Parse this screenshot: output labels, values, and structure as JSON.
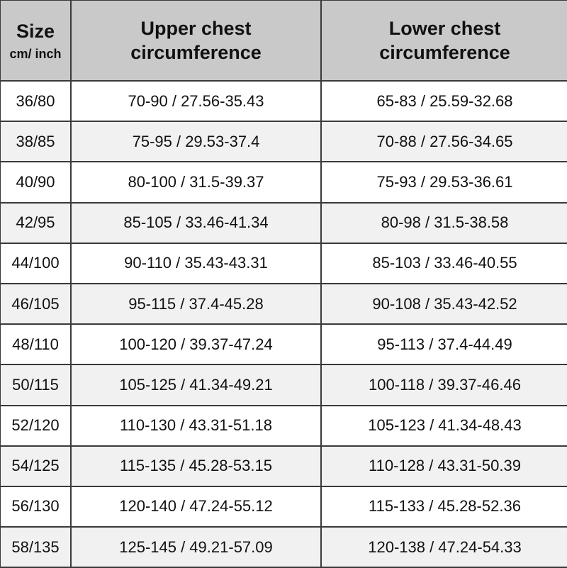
{
  "header": {
    "size": "Size",
    "size_unit": "cm/ inch",
    "upper": "Upper chest circumference",
    "lower": "Lower chest circumference"
  },
  "rows": [
    {
      "size": "36/80",
      "upper": "70-90 / 27.56-35.43",
      "lower": "65-83 / 25.59-32.68"
    },
    {
      "size": "38/85",
      "upper": "75-95 / 29.53-37.4",
      "lower": "70-88 / 27.56-34.65"
    },
    {
      "size": "40/90",
      "upper": "80-100 / 31.5-39.37",
      "lower": "75-93 / 29.53-36.61"
    },
    {
      "size": "42/95",
      "upper": "85-105 / 33.46-41.34",
      "lower": "80-98 / 31.5-38.58"
    },
    {
      "size": "44/100",
      "upper": "90-110 / 35.43-43.31",
      "lower": "85-103 / 33.46-40.55"
    },
    {
      "size": "46/105",
      "upper": "95-115 / 37.4-45.28",
      "lower": "90-108 / 35.43-42.52"
    },
    {
      "size": "48/110",
      "upper": "100-120 / 39.37-47.24",
      "lower": "95-113 / 37.4-44.49"
    },
    {
      "size": "50/115",
      "upper": "105-125 / 41.34-49.21",
      "lower": "100-118 / 39.37-46.46"
    },
    {
      "size": "52/120",
      "upper": "110-130 / 43.31-51.18",
      "lower": "105-123 / 41.34-48.43"
    },
    {
      "size": "54/125",
      "upper": "115-135 / 45.28-53.15",
      "lower": "110-128 / 43.31-50.39"
    },
    {
      "size": "56/130",
      "upper": "120-140 / 47.24-55.12",
      "lower": "115-133 / 45.28-52.36"
    },
    {
      "size": "58/135",
      "upper": "125-145 / 49.21-57.09",
      "lower": "120-138 / 47.24-54.33"
    }
  ]
}
